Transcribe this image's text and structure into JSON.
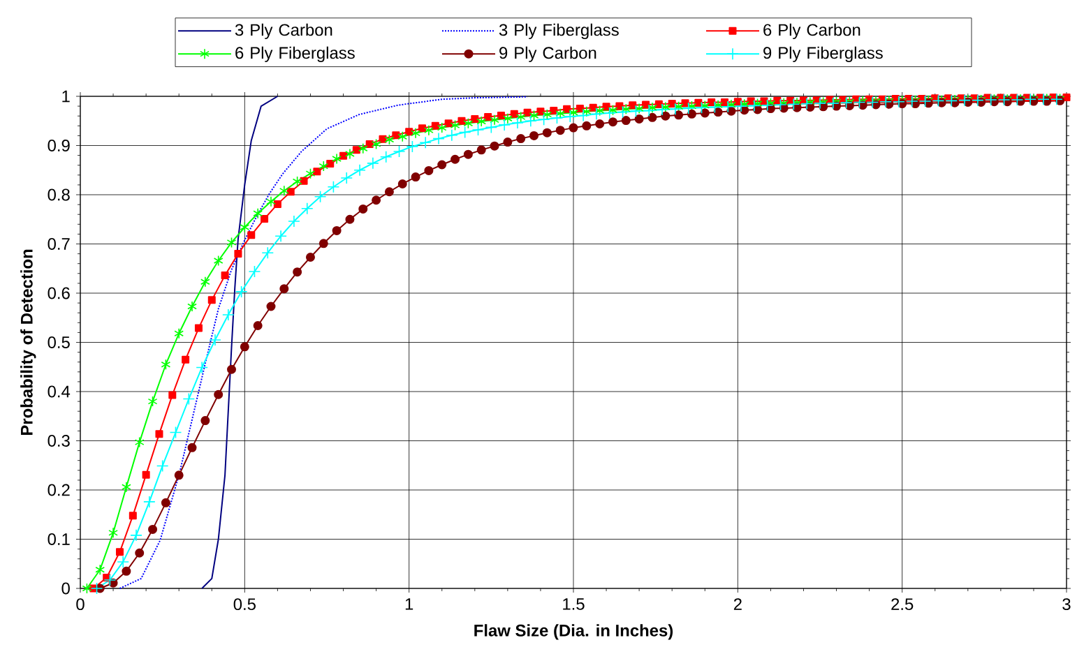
{
  "chart_data": {
    "type": "line",
    "xlabel": "Flaw Size (Dia. in Inches)",
    "ylabel": "Probability of Detection",
    "xlim": [
      0,
      3
    ],
    "ylim": [
      0,
      1
    ],
    "xticks": [
      0,
      0.5,
      1,
      1.5,
      2,
      2.5,
      3
    ],
    "yticks": [
      0,
      0.1,
      0.2,
      0.3,
      0.4,
      0.5,
      0.6,
      0.7,
      0.8,
      0.9,
      1
    ],
    "grid": true,
    "legend": "top",
    "series": [
      {
        "name": "3 Ply Carbon",
        "color": "#000080",
        "marker": "none",
        "line_style": "solid",
        "x": [
          0.37,
          0.4,
          0.42,
          0.44,
          0.45,
          0.46,
          0.47,
          0.48,
          0.5,
          0.52,
          0.55,
          0.6
        ],
        "values": [
          0,
          0.02,
          0.1,
          0.23,
          0.36,
          0.49,
          0.61,
          0.71,
          0.82,
          0.91,
          0.98,
          1
        ]
      },
      {
        "name": "3 Ply Fiberglass",
        "color": "#0000ff",
        "marker": "none",
        "line_style": "dotted",
        "x": [
          0.12,
          0.185,
          0.243,
          0.302,
          0.341,
          0.38,
          0.42,
          0.459,
          0.498,
          0.537,
          0.576,
          0.615,
          0.673,
          0.75,
          0.848,
          0.966,
          1.1,
          1.2,
          1.36
        ],
        "values": [
          0,
          0.02,
          0.098,
          0.235,
          0.346,
          0.457,
          0.568,
          0.646,
          0.705,
          0.757,
          0.803,
          0.842,
          0.888,
          0.934,
          0.963,
          0.982,
          0.994,
          0.997,
          0.999
        ]
      },
      {
        "name": "6 Ply Carbon",
        "color": "#ff0000",
        "marker": "square",
        "line_style": "solid",
        "x": [
          0.04,
          0.08,
          0.12,
          0.16,
          0.2,
          0.24,
          0.28,
          0.32,
          0.36,
          0.4,
          0.44,
          0.48,
          0.52,
          0.56,
          0.6,
          0.64,
          0.68,
          0.72,
          0.76,
          0.8,
          0.84,
          0.88,
          0.92,
          0.96,
          1.0,
          1.04,
          1.08,
          1.12,
          1.16,
          1.2,
          1.24,
          1.28,
          1.32,
          1.36,
          1.4,
          1.44,
          1.48,
          1.52,
          1.56,
          1.6,
          1.64,
          1.68,
          1.72,
          1.76,
          1.8,
          1.84,
          1.88,
          1.92,
          1.96,
          2.0,
          2.04,
          2.08,
          2.12,
          2.16,
          2.2,
          2.24,
          2.28,
          2.32,
          2.36,
          2.4,
          2.44,
          2.48,
          2.52,
          2.56,
          2.6,
          2.64,
          2.68,
          2.72,
          2.76,
          2.8,
          2.84,
          2.88,
          2.92,
          2.96,
          3.0
        ],
        "values": [
          0,
          0.022,
          0.074,
          0.148,
          0.231,
          0.314,
          0.393,
          0.465,
          0.529,
          0.586,
          0.636,
          0.68,
          0.718,
          0.751,
          0.781,
          0.806,
          0.828,
          0.847,
          0.863,
          0.879,
          0.891,
          0.903,
          0.913,
          0.921,
          0.928,
          0.935,
          0.94,
          0.945,
          0.95,
          0.954,
          0.958,
          0.961,
          0.964,
          0.967,
          0.969,
          0.971,
          0.974,
          0.975,
          0.977,
          0.979,
          0.98,
          0.982,
          0.983,
          0.984,
          0.985,
          0.986,
          0.987,
          0.988,
          0.988,
          0.989,
          0.99,
          0.99,
          0.991,
          0.991,
          0.992,
          0.992,
          0.993,
          0.993,
          0.994,
          0.994,
          0.994,
          0.995,
          0.995,
          0.995,
          0.996,
          0.996,
          0.996,
          0.996,
          0.997,
          0.997,
          0.997,
          0.997,
          0.997,
          0.998,
          0.998
        ]
      },
      {
        "name": "6 Ply Fiberglass",
        "color": "#00ff00",
        "marker": "cross",
        "line_style": "solid",
        "x": [
          0.02,
          0.06,
          0.1,
          0.14,
          0.18,
          0.22,
          0.26,
          0.3,
          0.34,
          0.38,
          0.42,
          0.46,
          0.5,
          0.54,
          0.58,
          0.62,
          0.66,
          0.7,
          0.74,
          0.78,
          0.82,
          0.86,
          0.9,
          0.94,
          0.98,
          1.02,
          1.06,
          1.1,
          1.14,
          1.18,
          1.22,
          1.26,
          1.3,
          1.34,
          1.38,
          1.42,
          1.46,
          1.5,
          1.54,
          1.58,
          1.62,
          1.66,
          1.7,
          1.74,
          1.78,
          1.82,
          1.86,
          1.9,
          1.94,
          1.98,
          2.02,
          2.06,
          2.1,
          2.14,
          2.18,
          2.22,
          2.26,
          2.3,
          2.34,
          2.38,
          2.42,
          2.46,
          2.5,
          2.54,
          2.58,
          2.62,
          2.66,
          2.7,
          2.74,
          2.78,
          2.82,
          2.86,
          2.9,
          2.94,
          2.98
        ],
        "values": [
          0,
          0.038,
          0.113,
          0.206,
          0.297,
          0.38,
          0.455,
          0.518,
          0.573,
          0.623,
          0.666,
          0.703,
          0.734,
          0.762,
          0.786,
          0.808,
          0.827,
          0.843,
          0.858,
          0.873,
          0.883,
          0.894,
          0.903,
          0.912,
          0.918,
          0.925,
          0.931,
          0.936,
          0.941,
          0.945,
          0.949,
          0.952,
          0.955,
          0.958,
          0.961,
          0.963,
          0.965,
          0.967,
          0.969,
          0.971,
          0.972,
          0.974,
          0.975,
          0.977,
          0.978,
          0.979,
          0.98,
          0.981,
          0.982,
          0.983,
          0.984,
          0.985,
          0.986,
          0.986,
          0.987,
          0.988,
          0.988,
          0.989,
          0.989,
          0.99,
          0.99,
          0.991,
          0.991,
          0.992,
          0.992,
          0.992,
          0.993,
          0.993,
          0.993,
          0.994,
          0.994,
          0.994,
          0.994,
          0.995,
          0.995
        ]
      },
      {
        "name": "9 Ply Carbon",
        "color": "#800000",
        "marker": "circle",
        "line_style": "solid",
        "x": [
          0.06,
          0.1,
          0.14,
          0.18,
          0.22,
          0.26,
          0.3,
          0.34,
          0.38,
          0.42,
          0.46,
          0.5,
          0.54,
          0.58,
          0.62,
          0.66,
          0.7,
          0.74,
          0.78,
          0.82,
          0.86,
          0.9,
          0.94,
          0.98,
          1.02,
          1.06,
          1.1,
          1.14,
          1.18,
          1.22,
          1.26,
          1.3,
          1.34,
          1.38,
          1.42,
          1.46,
          1.5,
          1.54,
          1.58,
          1.62,
          1.66,
          1.7,
          1.74,
          1.78,
          1.82,
          1.86,
          1.9,
          1.94,
          1.98,
          2.02,
          2.06,
          2.1,
          2.14,
          2.18,
          2.22,
          2.26,
          2.3,
          2.34,
          2.38,
          2.42,
          2.46,
          2.5,
          2.54,
          2.58,
          2.62,
          2.66,
          2.7,
          2.74,
          2.78,
          2.82,
          2.86,
          2.9,
          2.94,
          2.98
        ],
        "values": [
          0,
          0.011,
          0.035,
          0.072,
          0.12,
          0.174,
          0.23,
          0.286,
          0.341,
          0.394,
          0.445,
          0.491,
          0.534,
          0.573,
          0.609,
          0.643,
          0.673,
          0.701,
          0.727,
          0.75,
          0.771,
          0.789,
          0.806,
          0.822,
          0.836,
          0.849,
          0.861,
          0.872,
          0.882,
          0.891,
          0.899,
          0.907,
          0.914,
          0.92,
          0.926,
          0.931,
          0.936,
          0.94,
          0.944,
          0.948,
          0.951,
          0.954,
          0.957,
          0.96,
          0.962,
          0.964,
          0.966,
          0.968,
          0.97,
          0.972,
          0.973,
          0.975,
          0.976,
          0.977,
          0.978,
          0.979,
          0.98,
          0.981,
          0.982,
          0.983,
          0.984,
          0.985,
          0.985,
          0.986,
          0.987,
          0.987,
          0.988,
          0.988,
          0.989,
          0.989,
          0.99,
          0.99,
          0.99,
          0.991
        ]
      },
      {
        "name": "9 Ply Fiberglass",
        "color": "#00ffff",
        "marker": "cross",
        "line_style": "solid",
        "x": [
          0.05,
          0.09,
          0.13,
          0.17,
          0.21,
          0.25,
          0.29,
          0.33,
          0.37,
          0.41,
          0.45,
          0.49,
          0.53,
          0.57,
          0.61,
          0.65,
          0.69,
          0.73,
          0.77,
          0.81,
          0.85,
          0.89,
          0.93,
          0.97,
          1.01,
          1.05,
          1.09,
          1.13,
          1.17,
          1.21,
          1.25,
          1.29,
          1.33,
          1.37,
          1.41,
          1.45,
          1.49,
          1.53,
          1.57,
          1.61,
          1.65,
          1.69,
          1.73,
          1.77,
          1.81,
          1.85,
          1.89,
          1.93,
          1.97,
          2.01,
          2.05,
          2.09,
          2.13,
          2.17,
          2.21,
          2.25,
          2.29,
          2.33,
          2.37,
          2.41,
          2.45,
          2.49,
          2.53,
          2.57,
          2.61,
          2.65,
          2.69,
          2.73,
          2.77,
          2.81,
          2.85,
          2.89,
          2.93,
          2.97
        ],
        "values": [
          0,
          0.017,
          0.054,
          0.108,
          0.176,
          0.249,
          0.317,
          0.385,
          0.449,
          0.505,
          0.556,
          0.603,
          0.644,
          0.682,
          0.716,
          0.746,
          0.772,
          0.796,
          0.816,
          0.834,
          0.85,
          0.864,
          0.877,
          0.888,
          0.898,
          0.906,
          0.914,
          0.921,
          0.927,
          0.932,
          0.937,
          0.942,
          0.946,
          0.95,
          0.953,
          0.956,
          0.959,
          0.961,
          0.964,
          0.966,
          0.968,
          0.97,
          0.971,
          0.973,
          0.974,
          0.976,
          0.977,
          0.978,
          0.979,
          0.98,
          0.981,
          0.982,
          0.983,
          0.984,
          0.985,
          0.986,
          0.986,
          0.987,
          0.988,
          0.988,
          0.989,
          0.989,
          0.99,
          0.99,
          0.991,
          0.991,
          0.992,
          0.992,
          0.993,
          0.993,
          0.993,
          0.994,
          0.994,
          0.994
        ]
      }
    ]
  }
}
